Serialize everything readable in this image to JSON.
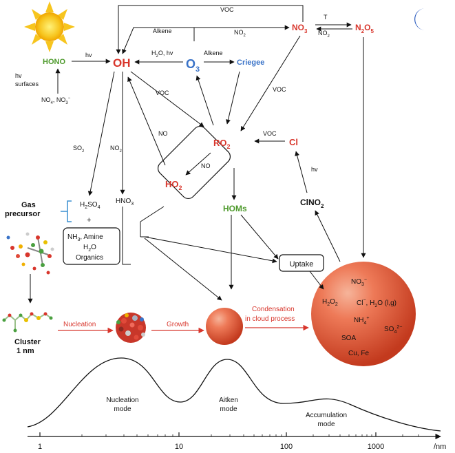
{
  "species": {
    "hono": "HONO",
    "oh": "OH",
    "o3_main": "O",
    "o3_sub": "3",
    "criegee": "Criegee",
    "no3_main": "NO",
    "no3_sub": "3",
    "n2o5_a": "N",
    "n2o5_b": "2",
    "n2o5_c": "O",
    "n2o5_d": "5",
    "ro2_main": "RO",
    "ro2_sub": "2",
    "ho2_main": "HO",
    "ho2_sub": "2",
    "cl": "Cl",
    "clno2_main": "ClNO",
    "clno2_sub": "2",
    "homs": "HOMs",
    "hno3_main": "HNO",
    "hno3_sub": "3",
    "h2so4_a": "H",
    "h2so4_b": "2",
    "h2so4_c": "SO",
    "h2so4_d": "4"
  },
  "reactions": {
    "hv": "hv",
    "hv_surfaces_1": "hv",
    "hv_surfaces_2": "surfaces",
    "no4_a": "NO",
    "no4_b": "4",
    "no4_c": ", NO",
    "no4_d": "3",
    "no4_e": "−",
    "voc": "VOC",
    "alkene": "Alkene",
    "no2_main": "NO",
    "no2_sub": "2",
    "h2o_hv": "H",
    "h2o_hv_sub": "2",
    "h2o_hv_rest": "O, hv",
    "t": "T",
    "no": "NO",
    "so2_main": "SO",
    "so2_sub": "2"
  },
  "left": {
    "gas_precursor_1": "Gas",
    "gas_precursor_2": "precursor",
    "plus": "+",
    "nh3_a": "NH",
    "nh3_b": "3",
    "nh3_c": ", Amine",
    "h2o_a": "H",
    "h2o_b": "2",
    "h2o_c": "O",
    "organics": "Organics",
    "cluster_1": "Cluster",
    "cluster_2": "1 nm"
  },
  "process": {
    "nucleation": "Nucleation",
    "growth": "Growth",
    "condensation_1": "Condensation",
    "condensation_2": "in cloud process",
    "uptake": "Uptake"
  },
  "particle": {
    "no3_a": "NO",
    "no3_b": "3",
    "no3_c": "−",
    "h2o2_a": "H",
    "h2o2_b": "2",
    "h2o2_c": "O",
    "h2o2_d": "2",
    "cl_a": "Cl",
    "cl_b": "−",
    "cl_c": ", H",
    "cl_d": "2",
    "cl_e": "O (l,g)",
    "nh4_a": "NH",
    "nh4_b": "4",
    "nh4_c": "+",
    "so4_a": "SO",
    "so4_b": "4",
    "so4_c": "2−",
    "soa": "SOA",
    "cufe": "Cu, Fe"
  },
  "distribution": {
    "modes": [
      "Nucleation",
      "mode",
      "Aitken",
      "mode",
      "Accumulation",
      "mode"
    ],
    "ticks": [
      "1",
      "10",
      "100",
      "1000"
    ],
    "axis_unit": "/nm"
  },
  "colors": {
    "red": "#d8362c",
    "green": "#4e9a2c",
    "blue": "#3a73c8",
    "bracket": "#3a8fd0",
    "moon": "#2f5fc0",
    "sun": "#f7c51e"
  },
  "icons": [
    "sun-icon",
    "moon-icon",
    "molecule-cluster-image",
    "particle-aggregate-image"
  ]
}
